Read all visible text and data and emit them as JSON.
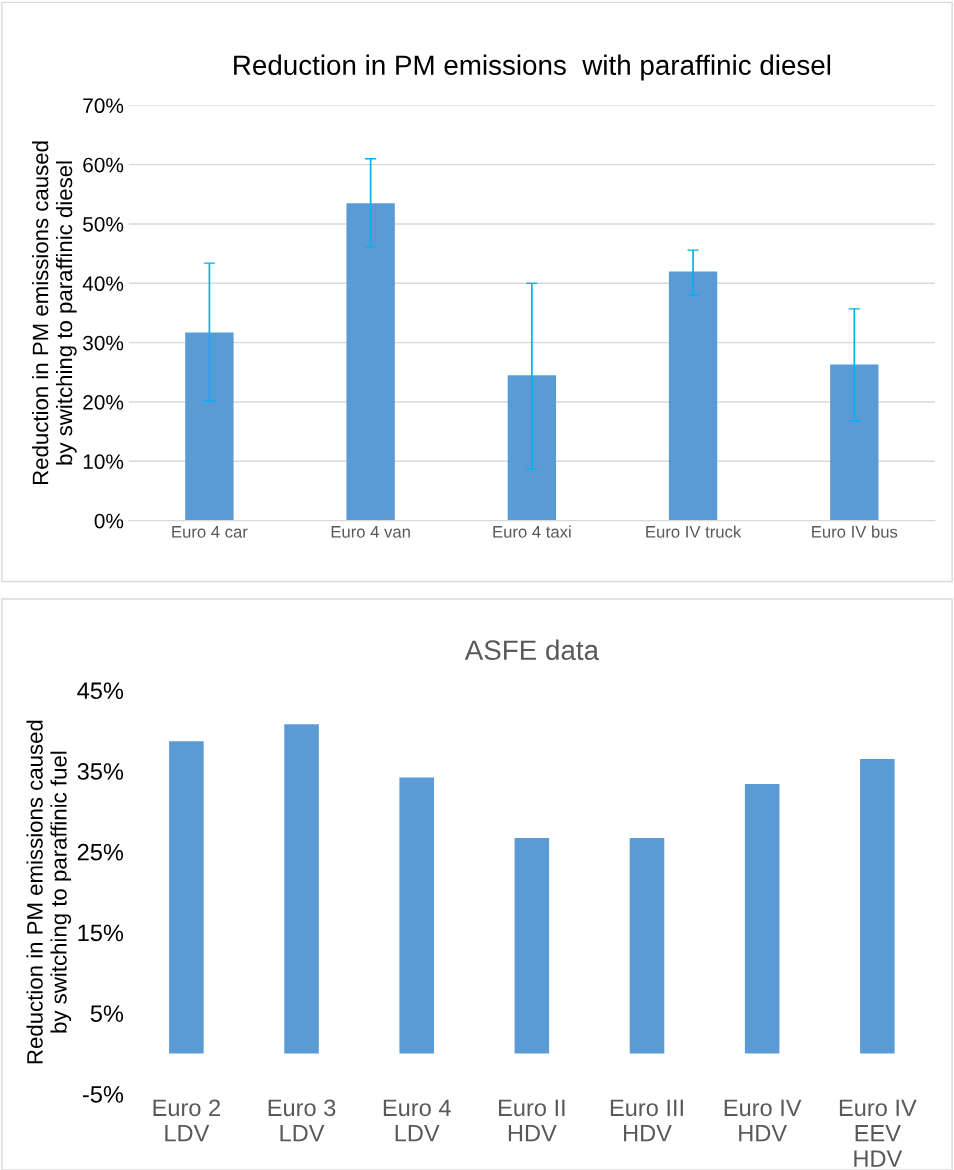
{
  "chart_data": [
    {
      "type": "bar",
      "title": "Reduction in PM emissions  with paraffinic diesel",
      "ylabel": "Reduction in PM emissions caused\nby switching to paraffinic diesel",
      "categories": [
        "Euro 4 car",
        "Euro 4 van",
        "Euro 4 taxi",
        "Euro IV truck",
        "Euro IV bus"
      ],
      "series": [
        {
          "color": "#5b9bd5",
          "values": [
            31.7,
            53.5,
            24.5,
            42.0,
            26.3
          ],
          "errors": [
            [
              20.2,
              43.4
            ],
            [
              46.1,
              61.0
            ],
            [
              8.7,
              40.0
            ],
            [
              38.0,
              45.6
            ],
            [
              16.8,
              35.7
            ]
          ]
        }
      ],
      "ylim": [
        0,
        70
      ],
      "yticks": [
        {
          "value": 0,
          "label": "0%"
        },
        {
          "value": 10,
          "label": "10%"
        },
        {
          "value": 20,
          "label": "20%"
        },
        {
          "value": 30,
          "label": "30%"
        },
        {
          "value": 40,
          "label": "40%"
        },
        {
          "value": 50,
          "label": "50%"
        },
        {
          "value": 60,
          "label": "60%"
        },
        {
          "value": 70,
          "label": "70%"
        }
      ],
      "grid": "y",
      "legend": false
    },
    {
      "type": "bar",
      "title": "ASFE data",
      "ylabel": "Reduction in PM emissions caused\nby switching to paraffinic fuel",
      "categories": [
        "Euro 2\nLDV",
        "Euro 3\nLDV",
        "Euro 4\nLDV",
        "Euro II\nHDV",
        "Euro III\nHDV",
        "Euro IV\nHDV",
        "Euro IV\nEEV\nHDV"
      ],
      "series": [
        {
          "color": "#5b9bd5",
          "values": [
            38.7,
            40.8,
            34.2,
            26.7,
            26.7,
            33.4,
            36.5
          ]
        }
      ],
      "ylim": [
        -5,
        45
      ],
      "yticks": [
        {
          "value": -5,
          "label": "-5%"
        },
        {
          "value": 5,
          "label": "5%"
        },
        {
          "value": 15,
          "label": "15%"
        },
        {
          "value": 25,
          "label": "25%"
        },
        {
          "value": 35,
          "label": "35%"
        },
        {
          "value": 45,
          "label": "45%"
        }
      ],
      "grid": false,
      "legend": false
    }
  ]
}
